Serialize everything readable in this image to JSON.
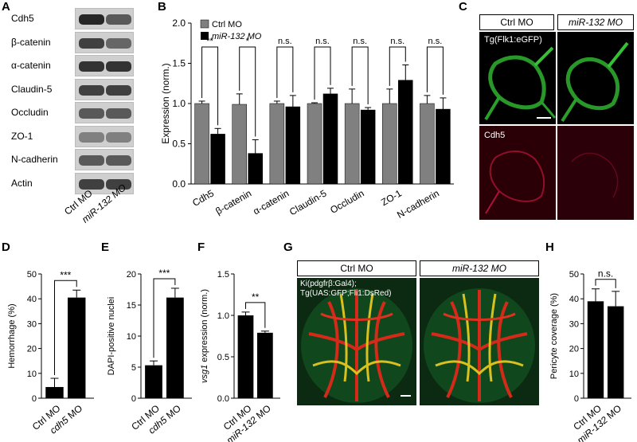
{
  "panels": {
    "A": "A",
    "B": "B",
    "C": "C",
    "D": "D",
    "E": "E",
    "F": "F",
    "G": "G",
    "H": "H"
  },
  "panel_a": {
    "rows": [
      "Cdh5",
      "β-catenin",
      "α-catenin",
      "Claudin-5",
      "Occludin",
      "ZO-1",
      "N-cadherin",
      "Actin"
    ],
    "x_labels": [
      "Ctrl MO",
      "miR-132 MO"
    ]
  },
  "panel_b": {
    "legend": [
      "Ctrl MO",
      "miR-132 MO"
    ],
    "colors": {
      "ctrl": "#808080",
      "mir": "#000000"
    }
  },
  "panel_c": {
    "headers": [
      "Ctrl MO",
      "miR-132 MO"
    ],
    "top_label": "Tg(Flk1:eGFP)",
    "bottom_label": "Cdh5"
  },
  "panel_g": {
    "headers": [
      "Ctrl MO",
      "miR-132 MO"
    ],
    "overlay_line1": "Ki(pdgfrβ:Gal4);",
    "overlay_line2": "Tg(UAS:GFP;Fli1:DsRed)"
  },
  "chart_data": [
    {
      "panel": "B",
      "type": "bar",
      "categories": [
        "Cdh5",
        "β-catenin",
        "α-catenin",
        "Claudin-5",
        "Occludin",
        "ZO-1",
        "N-cadherin"
      ],
      "series": [
        {
          "name": "Ctrl MO",
          "values": [
            1.0,
            0.99,
            1.0,
            1.0,
            1.0,
            1.0,
            1.0
          ],
          "errors": [
            0.03,
            0.13,
            0.03,
            0.01,
            0.18,
            0.18,
            0.1
          ]
        },
        {
          "name": "miR-132 MO",
          "values": [
            0.62,
            0.38,
            0.96,
            1.12,
            0.92,
            1.29,
            0.93
          ],
          "errors": [
            0.07,
            0.17,
            0.14,
            0.07,
            0.03,
            0.19,
            0.14
          ]
        }
      ],
      "significance": [
        "**",
        "*",
        "n.s.",
        "n.s.",
        "n.s.",
        "n.s.",
        "n.s."
      ],
      "ylabel": "Expression (norm.)",
      "ylim": [
        0,
        2.0
      ],
      "yticks": [
        "0.0",
        "0.5",
        "1.0",
        "1.5",
        "2.0"
      ]
    },
    {
      "panel": "D",
      "type": "bar",
      "categories": [
        "Ctrl MO",
        "cdh5 MO"
      ],
      "values": [
        4.5,
        40.5
      ],
      "errors": [
        3.5,
        3.0
      ],
      "colors": [
        "#000000",
        "#000000"
      ],
      "significance": "***",
      "ylabel": "Hemorrhage (%)",
      "ylim": [
        0,
        50
      ],
      "yticks": [
        "0",
        "10",
        "20",
        "30",
        "40",
        "50"
      ]
    },
    {
      "panel": "E",
      "type": "bar",
      "categories": [
        "Ctrl MO",
        "cdh5 MO"
      ],
      "values": [
        5.3,
        16.2
      ],
      "errors": [
        0.7,
        1.5
      ],
      "colors": [
        "#000000",
        "#000000"
      ],
      "significance": "***",
      "ylabel": "DAPI-positive nuclei",
      "ylim": [
        0,
        20
      ],
      "yticks": [
        "0",
        "5",
        "10",
        "15",
        "20"
      ]
    },
    {
      "panel": "F",
      "type": "bar",
      "categories": [
        "Ctrl MO",
        "miR-132 MO"
      ],
      "values": [
        1.0,
        0.79
      ],
      "errors": [
        0.04,
        0.02
      ],
      "colors": [
        "#000000",
        "#000000"
      ],
      "significance": "**",
      "ylabel": "vsg1 expression (norm.)",
      "ylim": [
        0,
        1.5
      ],
      "yticks": [
        "0.0",
        "0.5",
        "1.0",
        "1.5"
      ]
    },
    {
      "panel": "H",
      "type": "bar",
      "categories": [
        "Ctrl MO",
        "miR-132 MO"
      ],
      "values": [
        39,
        37
      ],
      "errors": [
        5,
        6
      ],
      "colors": [
        "#000000",
        "#000000"
      ],
      "significance": "n.s.",
      "ylabel": "Pericyte coverage (%)",
      "ylim": [
        0,
        50
      ],
      "yticks": [
        "0",
        "10",
        "20",
        "30",
        "40",
        "50"
      ]
    }
  ]
}
